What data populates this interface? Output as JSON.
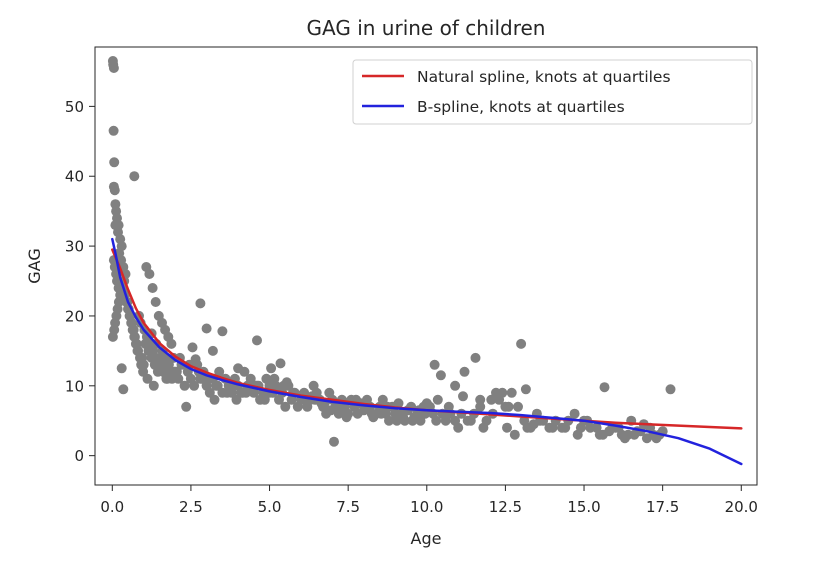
{
  "chart_data": {
    "type": "scatter",
    "title": "GAG in urine of children",
    "xlabel": "Age",
    "ylabel": "GAG",
    "xlim": [
      -0.55,
      20.5
    ],
    "ylim": [
      -4.2,
      58.5
    ],
    "xticks": [
      0.0,
      2.5,
      5.0,
      7.5,
      10.0,
      12.5,
      15.0,
      17.5,
      20.0
    ],
    "xtick_labels": [
      "0.0",
      "2.5",
      "5.0",
      "7.5",
      "10.0",
      "12.5",
      "15.0",
      "17.5",
      "20.0"
    ],
    "yticks": [
      0,
      10,
      20,
      30,
      40,
      50
    ],
    "ytick_labels": [
      "0",
      "10",
      "20",
      "30",
      "40",
      "50"
    ],
    "grid": false,
    "legend_position": "top-right",
    "colors": {
      "points": "#808080",
      "natural_spline": "#d62728",
      "b_spline": "#2222dd",
      "axes": "#262626"
    },
    "scatter": {
      "x": [
        0.02,
        0.03,
        0.05,
        0.04,
        0.06,
        0.05,
        0.08,
        0.1,
        0.12,
        0.15,
        0.1,
        0.2,
        0.18,
        0.25,
        0.3,
        0.22,
        0.28,
        0.35,
        0.05,
        0.08,
        0.12,
        0.15,
        0.2,
        0.25,
        0.02,
        0.06,
        0.09,
        0.13,
        0.17,
        0.21,
        0.27,
        0.33,
        0.38,
        0.42,
        0.45,
        0.5,
        0.55,
        0.6,
        0.65,
        0.7,
        0.75,
        0.8,
        0.85,
        0.9,
        0.95,
        1.0,
        0.4,
        0.48,
        0.52,
        0.58,
        0.62,
        0.68,
        0.72,
        0.78,
        0.82,
        0.88,
        0.92,
        0.98,
        0.3,
        0.35,
        1.02,
        1.05,
        1.1,
        1.15,
        1.2,
        1.25,
        1.3,
        1.35,
        1.4,
        1.45,
        1.5,
        1.55,
        1.6,
        1.65,
        1.7,
        1.75,
        1.8,
        1.85,
        1.9,
        1.95,
        2.0,
        1.08,
        1.18,
        1.28,
        1.38,
        1.48,
        1.58,
        1.68,
        1.78,
        1.88,
        1.98,
        1.12,
        1.42,
        1.72,
        1.32,
        1.62,
        0.7,
        1.25,
        2.05,
        2.1,
        2.2,
        2.3,
        2.4,
        2.5,
        2.6,
        2.7,
        2.8,
        2.9,
        3.0,
        3.1,
        3.2,
        3.3,
        3.4,
        3.5,
        3.6,
        3.7,
        3.8,
        3.9,
        4.0,
        4.1,
        4.2,
        4.3,
        4.4,
        4.5,
        4.6,
        4.7,
        4.8,
        4.9,
        5.0,
        2.15,
        2.45,
        2.75,
        3.05,
        3.35,
        3.65,
        3.95,
        4.25,
        4.55,
        4.85,
        2.35,
        2.85,
        3.25,
        3.75,
        4.15,
        4.65,
        2.8,
        3.0,
        3.5,
        3.2,
        2.55,
        4.6,
        4.0,
        2.65,
        3.85,
        5.1,
        5.2,
        5.3,
        5.4,
        5.5,
        5.6,
        5.7,
        5.8,
        5.9,
        6.0,
        6.1,
        6.2,
        6.3,
        6.4,
        6.5,
        6.6,
        6.7,
        6.8,
        6.9,
        7.0,
        7.1,
        7.2,
        7.3,
        7.4,
        7.5,
        5.15,
        5.45,
        5.75,
        6.05,
        6.35,
        6.65,
        6.95,
        7.25,
        5.05,
        5.55,
        6.15,
        6.75,
        7.35,
        7.45,
        7.05,
        5.35,
        6.45,
        5.0,
        7.6,
        7.7,
        7.8,
        7.9,
        8.0,
        8.1,
        8.2,
        8.3,
        8.4,
        8.5,
        8.6,
        8.7,
        8.8,
        8.9,
        9.0,
        9.1,
        9.2,
        9.3,
        9.4,
        9.5,
        9.6,
        9.7,
        9.8,
        9.9,
        10.0,
        7.75,
        8.25,
        8.75,
        9.25,
        9.75,
        8.05,
        8.55,
        9.05,
        9.55,
        9.95,
        10.1,
        10.3,
        10.5,
        10.7,
        10.9,
        11.1,
        11.3,
        11.5,
        11.7,
        11.9,
        12.1,
        12.3,
        12.5,
        10.2,
        10.6,
        11.0,
        11.4,
        11.8,
        12.2,
        12.6,
        10.35,
        10.75,
        11.15,
        11.55,
        10.25,
        10.45,
        10.9,
        11.2,
        11.7,
        12.05,
        12.4,
        12.7,
        12.9,
        13.1,
        13.3,
        13.5,
        13.7,
        13.9,
        14.1,
        14.3,
        14.5,
        14.7,
        14.9,
        15.1,
        12.8,
        13.2,
        13.6,
        14.0,
        14.4,
        14.8,
        15.0,
        13.0,
        13.15,
        13.4,
        12.55,
        15.2,
        15.4,
        15.6,
        15.8,
        16.0,
        16.2,
        16.4,
        16.6,
        16.8,
        17.0,
        17.2,
        17.4,
        17.5,
        15.5,
        15.9,
        16.3,
        16.7,
        17.1,
        15.65,
        16.5,
        16.9,
        17.75,
        16.1,
        17.3
      ],
      "y": [
        56.5,
        56,
        55.5,
        46.5,
        42,
        38.5,
        38,
        36,
        35,
        34,
        33,
        33,
        32,
        31,
        30,
        29,
        28,
        27,
        28,
        27,
        26,
        25,
        24,
        23,
        17,
        18,
        19,
        20,
        21,
        22,
        23,
        24,
        25,
        26,
        22,
        21,
        20,
        19,
        18,
        17,
        16,
        15,
        20,
        19,
        14,
        13,
        23,
        22,
        21,
        20,
        19,
        18,
        17,
        16,
        15,
        14,
        13,
        12,
        12.5,
        9.5,
        18,
        16,
        17,
        15,
        16,
        14,
        15,
        13,
        16,
        12,
        14,
        13,
        15,
        12,
        14,
        11,
        13,
        12,
        11,
        14,
        12,
        27,
        26,
        24,
        22,
        20,
        19,
        18,
        17,
        16,
        12,
        11,
        13,
        11,
        10,
        12,
        40,
        17.5,
        12,
        11,
        13,
        10,
        12,
        11,
        10,
        13,
        11,
        12,
        10,
        9,
        11,
        10,
        12,
        9,
        11,
        10,
        9,
        11,
        10,
        9,
        12,
        10,
        11,
        9,
        10,
        8,
        9,
        11,
        10,
        14,
        13,
        12,
        11,
        10,
        9,
        8,
        9,
        10,
        8,
        7,
        11,
        8,
        10,
        9,
        10,
        21.8,
        18.2,
        17.8,
        15,
        15.5,
        16.5,
        12.5,
        13.8,
        10,
        9,
        10,
        8,
        9,
        7,
        10,
        8,
        9,
        7,
        8,
        9,
        7,
        8,
        10,
        9,
        8,
        7,
        6,
        9,
        8,
        7,
        6,
        8,
        7,
        6,
        11,
        10,
        9,
        8,
        8.5,
        7.5,
        6.5,
        7,
        12.5,
        10.5,
        8.5,
        7.5,
        6.5,
        5.5,
        2,
        13.2,
        8,
        9,
        8,
        7,
        6,
        7.5,
        6.5,
        8,
        7,
        5.5,
        6,
        7,
        8,
        6,
        5,
        7,
        6,
        7.5,
        6,
        5,
        6.5,
        7,
        5.5,
        6,
        5,
        7,
        7.5,
        8,
        6,
        7,
        5.5,
        6.5,
        7,
        6,
        5,
        5,
        6,
        7,
        5,
        6,
        7,
        5,
        6,
        5,
        6,
        7,
        5,
        6,
        8,
        7,
        6,
        5,
        4,
        5,
        4,
        9,
        7,
        8,
        6,
        8.5,
        14,
        13,
        11.5,
        10,
        12,
        8,
        8,
        9,
        9,
        7,
        5,
        4,
        6,
        5,
        4,
        5,
        4,
        5,
        6,
        4,
        5,
        3,
        4,
        5,
        4,
        4,
        3,
        5,
        16,
        9.5,
        4.5,
        4,
        4,
        4,
        3,
        3.5,
        4,
        3,
        3,
        3,
        3.5,
        2.5,
        3,
        3,
        3.5,
        3,
        4,
        2.5,
        3.5,
        4,
        9.8,
        5,
        4.5,
        9.5,
        4,
        2.5
      ]
    },
    "series": [
      {
        "name": "Natural spline, knots at quartiles",
        "x": [
          0.0,
          0.25,
          0.5,
          0.75,
          1.0,
          1.5,
          2.0,
          2.5,
          3.0,
          3.5,
          4.0,
          5.0,
          6.0,
          7.0,
          8.0,
          9.0,
          10.0,
          11.0,
          12.0,
          13.0,
          14.0,
          15.0,
          16.0,
          17.0,
          18.0,
          19.0,
          20.0
        ],
        "y": [
          29.5,
          26.8,
          23.8,
          21.1,
          19.0,
          16.1,
          14.2,
          12.8,
          11.9,
          11.1,
          10.4,
          9.4,
          8.6,
          8.0,
          7.4,
          6.9,
          6.5,
          6.2,
          5.9,
          5.6,
          5.3,
          5.0,
          4.7,
          4.5,
          4.3,
          4.1,
          3.9
        ]
      },
      {
        "name": "B-spline, knots at quartiles",
        "x": [
          0.0,
          0.1,
          0.25,
          0.5,
          0.75,
          1.0,
          1.5,
          2.0,
          2.5,
          3.0,
          3.5,
          4.0,
          5.0,
          6.0,
          7.0,
          8.0,
          9.0,
          10.0,
          11.0,
          12.0,
          13.0,
          14.0,
          15.0,
          16.0,
          17.0,
          18.0,
          19.0,
          20.0
        ],
        "y": [
          31.0,
          29.0,
          25.5,
          22.0,
          19.8,
          18.0,
          15.5,
          13.7,
          12.4,
          11.5,
          10.8,
          10.2,
          9.2,
          8.4,
          7.7,
          7.2,
          6.8,
          6.5,
          6.3,
          6.1,
          5.8,
          5.4,
          5.0,
          4.3,
          3.5,
          2.5,
          1.0,
          -1.2
        ]
      }
    ]
  }
}
